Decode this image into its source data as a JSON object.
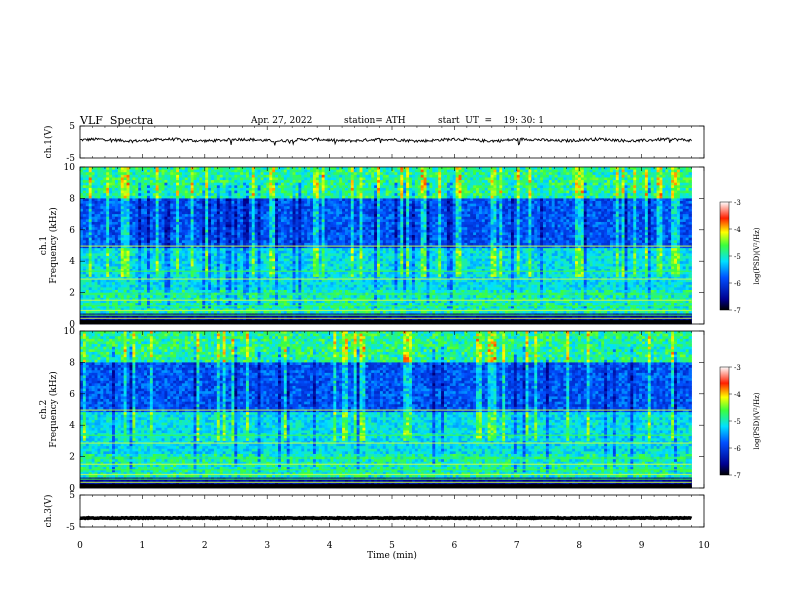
{
  "header": {
    "title": "VLF  Spectra",
    "date": "Apr. 27, 2022",
    "station": "station= ATH",
    "start": "start  UT  =    19: 30: 1"
  },
  "chart_data": [
    {
      "type": "line",
      "panel": "ch1-waveform",
      "ylabel": "ch.1(V)",
      "ylim": [
        -5,
        5
      ],
      "y_ticks": [
        "5",
        "-5"
      ],
      "x_range_min": [
        0,
        9.8
      ],
      "baseline_approx_V": 0.6
    },
    {
      "type": "heatmap",
      "panel": "ch1-spectrogram",
      "ylabel": "ch.1\nFrequency  (kHz)",
      "y_ticks": [
        "0",
        "2",
        "4",
        "6",
        "8",
        "10"
      ],
      "ylim_khz": [
        0,
        10
      ],
      "x_range_min": [
        0,
        9.8
      ],
      "colorbar": {
        "label": "log(PSD)(V²/Hz)",
        "ticks": [
          "-3",
          "-4",
          "-5",
          "-6",
          "-7"
        ],
        "range": [
          -7,
          -3
        ]
      }
    },
    {
      "type": "heatmap",
      "panel": "ch2-spectrogram",
      "ylabel": "ch.2\nFrequency  (kHz)",
      "y_ticks": [
        "0",
        "2",
        "4",
        "6",
        "8",
        "10"
      ],
      "ylim_khz": [
        0,
        10
      ],
      "x_range_min": [
        0,
        9.8
      ],
      "colorbar": {
        "label": "log(PSD)(V²/Hz)",
        "ticks": [
          "-3",
          "-4",
          "-5",
          "-6",
          "-7"
        ],
        "range": [
          -7,
          -3
        ]
      }
    },
    {
      "type": "line",
      "panel": "ch3-waveform",
      "ylabel": "ch.3(V)",
      "ylim": [
        -5,
        5
      ],
      "y_ticks": [
        "5",
        "-5"
      ],
      "x_range_min": [
        0,
        9.8
      ],
      "baseline_approx_V": -2.2
    }
  ],
  "x_axis": {
    "label": "Time  (min)",
    "ticks": [
      "0",
      "1",
      "2",
      "3",
      "4",
      "5",
      "6",
      "7",
      "8",
      "9",
      "10"
    ],
    "xlim": [
      0,
      10
    ]
  },
  "colors": {
    "low": "#00008f",
    "mid": "#00d2ff",
    "high_mid": "#3cff00",
    "high": "#ff0000"
  }
}
